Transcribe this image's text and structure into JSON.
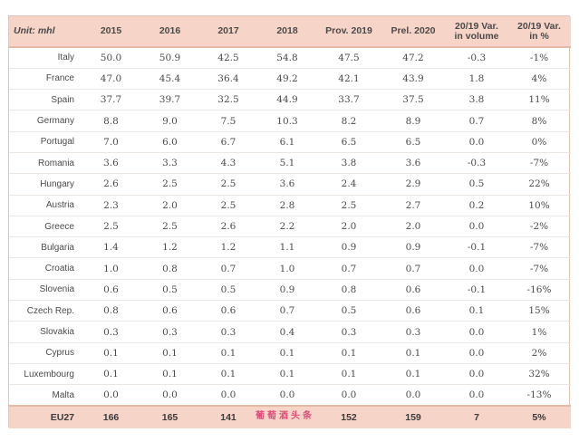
{
  "header": {
    "unit": "Unit: mhl",
    "columns": [
      "2015",
      "2016",
      "2017",
      "2018",
      "Prov. 2019",
      "Prel. 2020",
      "20/19 Var.\nin volume",
      "20/19 Var.\nin %"
    ]
  },
  "rows": [
    {
      "country": "Italy",
      "v": [
        "50.0",
        "50.9",
        "42.5",
        "54.8",
        "47.5",
        "47.2",
        "-0.3",
        "-1%"
      ]
    },
    {
      "country": "France",
      "v": [
        "47.0",
        "45.4",
        "36.4",
        "49.2",
        "42.1",
        "43.9",
        "1.8",
        "4%"
      ]
    },
    {
      "country": "Spain",
      "v": [
        "37.7",
        "39.7",
        "32.5",
        "44.9",
        "33.7",
        "37.5",
        "3.8",
        "11%"
      ]
    },
    {
      "country": "Germany",
      "v": [
        "8.8",
        "9.0",
        "7.5",
        "10.3",
        "8.2",
        "8.9",
        "0.7",
        "8%"
      ]
    },
    {
      "country": "Portugal",
      "v": [
        "7.0",
        "6.0",
        "6.7",
        "6.1",
        "6.5",
        "6.5",
        "0.0",
        "0%"
      ]
    },
    {
      "country": "Romania",
      "v": [
        "3.6",
        "3.3",
        "4.3",
        "5.1",
        "3.8",
        "3.6",
        "-0.3",
        "-7%"
      ]
    },
    {
      "country": "Hungary",
      "v": [
        "2.6",
        "2.5",
        "2.5",
        "3.6",
        "2.4",
        "2.9",
        "0.5",
        "22%"
      ]
    },
    {
      "country": "Austria",
      "v": [
        "2.3",
        "2.0",
        "2.5",
        "2.8",
        "2.5",
        "2.7",
        "0.2",
        "10%"
      ]
    },
    {
      "country": "Greece",
      "v": [
        "2.5",
        "2.5",
        "2.6",
        "2.2",
        "2.0",
        "2.0",
        "0.0",
        "-2%"
      ]
    },
    {
      "country": "Bulgaria",
      "v": [
        "1.4",
        "1.2",
        "1.2",
        "1.1",
        "0.9",
        "0.9",
        "-0.1",
        "-7%"
      ]
    },
    {
      "country": "Croatia",
      "v": [
        "1.0",
        "0.8",
        "0.7",
        "1.0",
        "0.7",
        "0.7",
        "0.0",
        "-7%"
      ]
    },
    {
      "country": "Slovenia",
      "v": [
        "0.6",
        "0.5",
        "0.5",
        "0.9",
        "0.8",
        "0.6",
        "-0.1",
        "-16%"
      ]
    },
    {
      "country": "Czech Rep.",
      "v": [
        "0.8",
        "0.6",
        "0.6",
        "0.7",
        "0.5",
        "0.6",
        "0.1",
        "15%"
      ]
    },
    {
      "country": "Slovakia",
      "v": [
        "0.3",
        "0.3",
        "0.3",
        "0.4",
        "0.3",
        "0.3",
        "0.0",
        "1%"
      ]
    },
    {
      "country": "Cyprus",
      "v": [
        "0.1",
        "0.1",
        "0.1",
        "0.1",
        "0.1",
        "0.1",
        "0.0",
        "2%"
      ]
    },
    {
      "country": "Luxembourg",
      "v": [
        "0.1",
        "0.1",
        "0.1",
        "0.1",
        "0.1",
        "0.1",
        "0.0",
        "32%"
      ]
    },
    {
      "country": "Malta",
      "v": [
        "0.0",
        "0.0",
        "0.0",
        "0.0",
        "0.0",
        "0.0",
        "0.0",
        "-13%"
      ]
    }
  ],
  "total": {
    "country": "EU27",
    "v": [
      "166",
      "165",
      "141",
      "",
      "152",
      "159",
      "7",
      "5%"
    ]
  },
  "watermark": "葡萄酒头条",
  "colors": {
    "header_bg": "#f6d4c8",
    "border": "#e2c2b4",
    "watermark": "#e04d7a"
  }
}
